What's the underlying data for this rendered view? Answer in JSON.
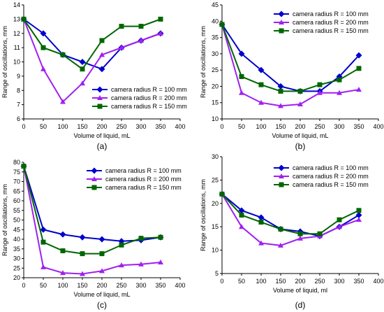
{
  "chart_data": [
    {
      "type": "line",
      "panel_label": "(a)",
      "xlabel": "Volume of liquid, mL",
      "ylabel": "Range of oscillations, mm",
      "xlim": [
        0,
        400
      ],
      "ylim": [
        6,
        14
      ],
      "xticks": [
        0,
        50,
        100,
        150,
        200,
        250,
        300,
        350,
        400
      ],
      "yticks": [
        6,
        7,
        8,
        9,
        10,
        11,
        12,
        13,
        14
      ],
      "grid": false,
      "legend_position": "bottom-right",
      "x": [
        0,
        50,
        100,
        150,
        200,
        250,
        300,
        350
      ],
      "series": [
        {
          "name": "camera radius R = 100 mm",
          "color": "#0000CC",
          "marker": "diamond",
          "values": [
            13,
            12,
            10.5,
            10,
            9.5,
            11,
            11.5,
            12
          ]
        },
        {
          "name": "camera radius R = 200 mm",
          "color": "#A020F0",
          "marker": "triangle",
          "values": [
            13,
            9.5,
            7.2,
            8.5,
            10.5,
            11,
            11.5,
            12
          ]
        },
        {
          "name": "camera radius R = 150 mm",
          "color": "#006600",
          "marker": "square",
          "values": [
            13,
            11,
            10.5,
            9.5,
            11.5,
            12.5,
            12.5,
            13
          ]
        }
      ]
    },
    {
      "type": "line",
      "panel_label": "(b)",
      "xlabel": "Volume of liquid, mL",
      "ylabel": "Range of oscillations, mm",
      "xlim": [
        0,
        400
      ],
      "ylim": [
        10,
        45
      ],
      "xticks": [
        0,
        50,
        100,
        150,
        200,
        250,
        300,
        350,
        400
      ],
      "yticks": [
        10,
        15,
        20,
        25,
        30,
        35,
        40,
        45
      ],
      "grid": false,
      "legend_position": "top-right",
      "x": [
        0,
        50,
        100,
        150,
        200,
        250,
        300,
        350
      ],
      "series": [
        {
          "name": "camera radius R = 100 mm",
          "color": "#0000CC",
          "marker": "diamond",
          "values": [
            39,
            30,
            25,
            20,
            18.5,
            18.5,
            23,
            29.5
          ]
        },
        {
          "name": "camera radius R = 200 mm",
          "color": "#A020F0",
          "marker": "triangle",
          "values": [
            39,
            18,
            15,
            14,
            14.5,
            18,
            18,
            19
          ]
        },
        {
          "name": "camera radius R = 150 mm",
          "color": "#006600",
          "marker": "square",
          "values": [
            39,
            23,
            20.5,
            18.5,
            18.5,
            20.5,
            22,
            25.5
          ]
        }
      ]
    },
    {
      "type": "line",
      "panel_label": "(c)",
      "xlabel": "Volume of liquid, mL",
      "ylabel": "Range of oscillations, mm",
      "xlim": [
        0,
        400
      ],
      "ylim": [
        20,
        80
      ],
      "xticks": [
        0,
        50,
        100,
        150,
        200,
        250,
        300,
        350,
        400
      ],
      "yticks": [
        20,
        25,
        30,
        35,
        40,
        45,
        50,
        55,
        60,
        65,
        70,
        75,
        80
      ],
      "grid": false,
      "legend_position": "top-right",
      "x": [
        0,
        50,
        100,
        150,
        200,
        250,
        300,
        350
      ],
      "series": [
        {
          "name": "camera radius R = 100 mm",
          "color": "#0000CC",
          "marker": "diamond",
          "values": [
            78,
            45,
            42.5,
            41,
            40,
            39,
            39.5,
            41
          ]
        },
        {
          "name": "camera radius R = 200 mm",
          "color": "#A020F0",
          "marker": "triangle",
          "values": [
            78,
            25.5,
            22.5,
            22,
            23.5,
            26.5,
            27,
            28
          ]
        },
        {
          "name": "camera radius R = 150 mm",
          "color": "#006600",
          "marker": "square",
          "values": [
            78,
            38.5,
            34,
            32.5,
            32.5,
            37,
            40.5,
            41
          ]
        }
      ]
    },
    {
      "type": "line",
      "panel_label": "(d)",
      "xlabel": "Volume of liquid, ml",
      "ylabel": "Range of oscillations, mm",
      "xlim": [
        0,
        400
      ],
      "ylim": [
        5,
        30
      ],
      "xticks": [
        0,
        50,
        100,
        150,
        200,
        250,
        300,
        350,
        400
      ],
      "yticks": [
        5,
        10,
        15,
        20,
        25,
        30
      ],
      "grid": false,
      "legend_position": "top-right",
      "x": [
        0,
        50,
        100,
        150,
        200,
        250,
        300,
        350
      ],
      "series": [
        {
          "name": "camera radius R = 100 mm",
          "color": "#0000CC",
          "marker": "diamond",
          "values": [
            22,
            18.5,
            17,
            14.5,
            14,
            13,
            15,
            17.5
          ]
        },
        {
          "name": "camera radius R = 200 mm",
          "color": "#A020F0",
          "marker": "triangle",
          "values": [
            22,
            15,
            11.5,
            11,
            12.5,
            13,
            15,
            16.5
          ]
        },
        {
          "name": "camera radius R = 150 mm",
          "color": "#006600",
          "marker": "square",
          "values": [
            22,
            17.5,
            16,
            14.5,
            13.5,
            13.5,
            16.5,
            18.5
          ]
        }
      ]
    }
  ]
}
